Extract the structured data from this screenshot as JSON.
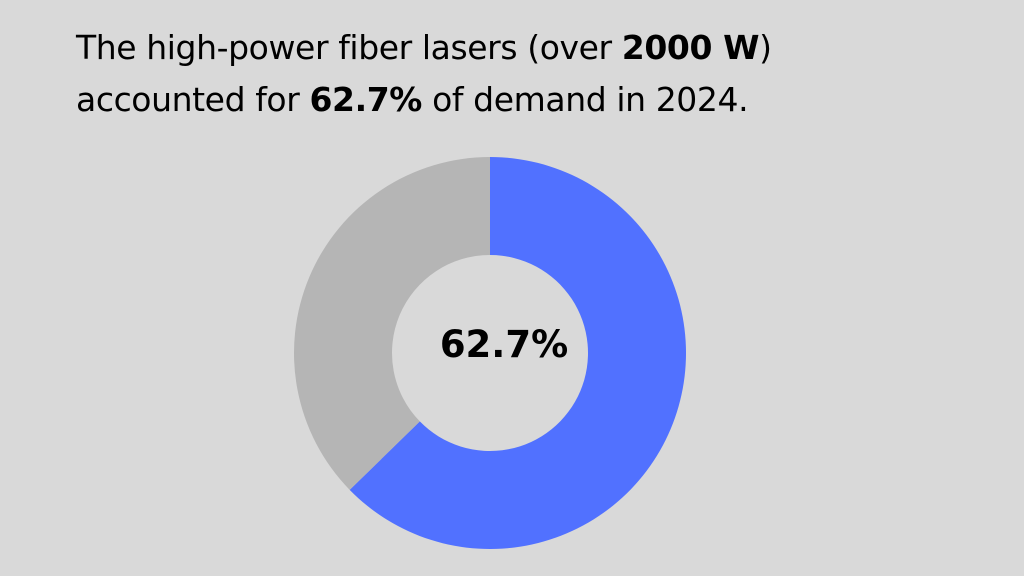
{
  "headline": {
    "line1_pre": "The high-power fiber lasers (over ",
    "line1_bold": "2000 W",
    "line1_post": ")",
    "line2_pre": "accounted for ",
    "line2_bold": "62.7%",
    "line2_post": " of demand in 2024."
  },
  "colors": {
    "background": "#d9d9d9",
    "primary_slice": "#5171ff",
    "remainder_slice": "#b5b5b5",
    "text": "#000000"
  },
  "chart_data": {
    "type": "pie",
    "donut": true,
    "categories": [
      "",
      ""
    ],
    "values": [
      62.7,
      37.3
    ],
    "unit": "%",
    "center_label": "62.7%",
    "title": "",
    "legend": "none"
  }
}
